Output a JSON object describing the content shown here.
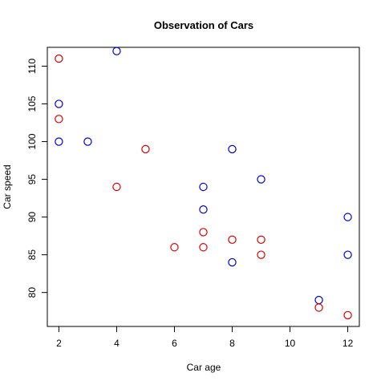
{
  "chart_data": {
    "type": "scatter",
    "title": "Observation of Cars",
    "xlabel": "Car age",
    "ylabel": "Car speed",
    "xlim": [
      1.6,
      12.4
    ],
    "ylim": [
      75.5,
      112.5
    ],
    "xticks": [
      2,
      4,
      6,
      8,
      10,
      12
    ],
    "yticks": [
      80,
      85,
      90,
      95,
      100,
      105,
      110
    ],
    "grid": false,
    "legend": "none",
    "series": [
      {
        "color": "#0000cc",
        "points": [
          {
            "x": 2,
            "y": 105
          },
          {
            "x": 2,
            "y": 100
          },
          {
            "x": 3,
            "y": 100
          },
          {
            "x": 4,
            "y": 112
          },
          {
            "x": 7,
            "y": 94
          },
          {
            "x": 7,
            "y": 91
          },
          {
            "x": 8,
            "y": 99
          },
          {
            "x": 8,
            "y": 84
          },
          {
            "x": 9,
            "y": 95
          },
          {
            "x": 11,
            "y": 79
          },
          {
            "x": 12,
            "y": 90
          },
          {
            "x": 12,
            "y": 85
          }
        ]
      },
      {
        "color": "#dd0000",
        "points": [
          {
            "x": 2,
            "y": 111
          },
          {
            "x": 2,
            "y": 103
          },
          {
            "x": 4,
            "y": 94
          },
          {
            "x": 5,
            "y": 99
          },
          {
            "x": 6,
            "y": 86
          },
          {
            "x": 7,
            "y": 88
          },
          {
            "x": 7,
            "y": 86
          },
          {
            "x": 8,
            "y": 87
          },
          {
            "x": 9,
            "y": 87
          },
          {
            "x": 9,
            "y": 85
          },
          {
            "x": 11,
            "y": 78
          },
          {
            "x": 12,
            "y": 77
          }
        ]
      }
    ]
  }
}
